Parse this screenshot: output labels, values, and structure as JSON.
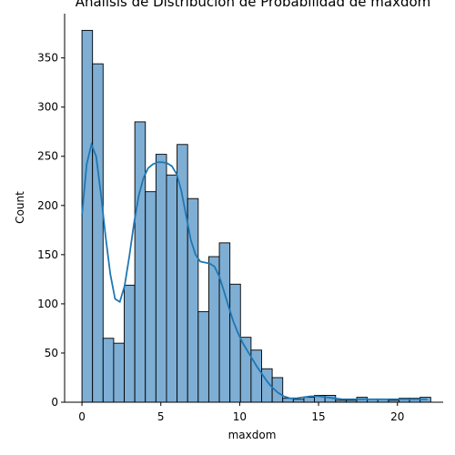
{
  "chart_data": {
    "type": "bar",
    "subtype": "histogram",
    "title": "Análisis de Distribución de Probabilidad de maxdom",
    "xlabel": "maxdom",
    "ylabel": "Count",
    "xlim": [
      -1.1,
      22.9
    ],
    "ylim": [
      0,
      395
    ],
    "xticks": [
      0,
      5,
      10,
      15,
      20
    ],
    "yticks": [
      0,
      50,
      100,
      150,
      200,
      250,
      300,
      350
    ],
    "bin_edges": [
      0,
      0.67,
      1.34,
      2.01,
      2.68,
      3.35,
      4.02,
      4.69,
      5.36,
      6.03,
      6.7,
      7.37,
      8.04,
      8.71,
      9.38,
      10.05,
      10.72,
      11.39,
      12.06,
      12.73,
      13.4,
      14.07,
      14.74,
      15.41,
      16.08,
      16.75,
      17.42,
      18.09,
      18.76,
      19.43,
      20.1,
      20.77,
      21.44,
      22.11
    ],
    "counts": [
      378,
      344,
      65,
      60,
      119,
      285,
      214,
      252,
      231,
      262,
      207,
      92,
      148,
      162,
      120,
      66,
      53,
      34,
      25,
      4,
      3,
      5,
      7,
      7,
      2,
      2,
      5,
      3,
      3,
      2,
      4,
      4,
      5
    ],
    "kde": {
      "x": [
        0,
        0.3,
        0.6,
        0.9,
        1.2,
        1.5,
        1.8,
        2.1,
        2.4,
        2.7,
        3.0,
        3.3,
        3.6,
        3.9,
        4.2,
        4.5,
        4.8,
        5.1,
        5.4,
        5.7,
        6.0,
        6.3,
        6.6,
        6.9,
        7.2,
        7.5,
        7.8,
        8.1,
        8.4,
        8.7,
        9.0,
        9.3,
        9.6,
        9.9,
        10.2,
        10.5,
        10.8,
        11.1,
        11.4,
        11.7,
        12.0,
        12.4,
        12.8,
        13.2,
        13.6,
        14.0,
        14.5,
        15.0,
        15.5,
        16.0,
        16.5,
        17.0,
        17.5,
        18.0,
        18.5,
        19.0,
        19.5,
        20.0,
        20.5,
        21.0,
        21.5,
        21.9
      ],
      "y": [
        190,
        242,
        262,
        250,
        212,
        168,
        130,
        105,
        102,
        118,
        148,
        182,
        210,
        228,
        238,
        242,
        244,
        244,
        243,
        240,
        232,
        215,
        190,
        165,
        150,
        143,
        142,
        141,
        138,
        128,
        113,
        97,
        82,
        70,
        60,
        52,
        44,
        36,
        29,
        22,
        16,
        10,
        6,
        4,
        4,
        5,
        6,
        6,
        5,
        4,
        3,
        3,
        3,
        3,
        3,
        3,
        3,
        3,
        3,
        3,
        3,
        3
      ]
    },
    "grid": false,
    "legend": "none",
    "colors": {
      "bar_fill": "#7eaed4",
      "bar_edge": "#000000",
      "kde_line": "#1f77b4"
    }
  }
}
